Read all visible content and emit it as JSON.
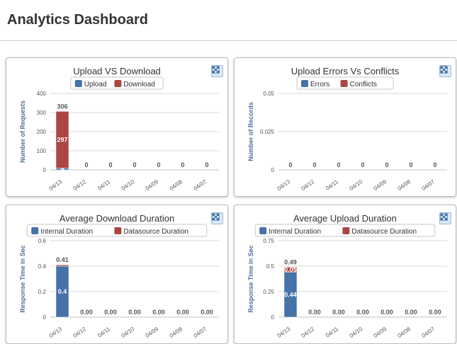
{
  "page": {
    "title": "Analytics Dashboard"
  },
  "chart_data": [
    {
      "type": "bar",
      "stacked": true,
      "title": "Upload VS Download",
      "ylabel": "Number of Requests",
      "xlabel": "",
      "ylim": [
        0,
        400
      ],
      "yticks": [
        "0",
        "100",
        "200",
        "300",
        "400"
      ],
      "categories": [
        "04/13",
        "04/12",
        "04/11",
        "04/10",
        "04/09",
        "04/08",
        "04/07"
      ],
      "series": [
        {
          "name": "Upload",
          "color": "#4572a7",
          "values": [
            9,
            0,
            0,
            0,
            0,
            0,
            0
          ],
          "labels": [
            "9",
            "",
            "",
            "",
            "",
            "",
            ""
          ]
        },
        {
          "name": "Download",
          "color": "#aa4643",
          "values": [
            297,
            0,
            0,
            0,
            0,
            0,
            0
          ],
          "labels": [
            "297",
            "",
            "",
            "",
            "",
            "",
            ""
          ]
        }
      ],
      "totals": [
        "306",
        "0",
        "0",
        "0",
        "0",
        "0",
        "0"
      ],
      "grid": true,
      "legend": "top-center"
    },
    {
      "type": "bar",
      "stacked": true,
      "title": "Upload Errors Vs Conflicts",
      "ylabel": "Number of Records",
      "xlabel": "",
      "ylim": [
        0,
        0.05
      ],
      "yticks": [
        "0",
        "0.025",
        "0.05"
      ],
      "categories": [
        "04/13",
        "04/12",
        "04/11",
        "04/10",
        "04/09",
        "04/08",
        "04/07"
      ],
      "series": [
        {
          "name": "Errors",
          "color": "#4572a7",
          "values": [
            0,
            0,
            0,
            0,
            0,
            0,
            0
          ],
          "labels": [
            "",
            "",
            "",
            "",
            "",
            "",
            ""
          ]
        },
        {
          "name": "Conflicts",
          "color": "#aa4643",
          "values": [
            0,
            0,
            0,
            0,
            0,
            0,
            0
          ],
          "labels": [
            "",
            "",
            "",
            "",
            "",
            "",
            ""
          ]
        }
      ],
      "totals": [
        "0",
        "0",
        "0",
        "0",
        "0",
        "0",
        "0"
      ],
      "grid": true,
      "legend": "top-center"
    },
    {
      "type": "bar",
      "stacked": true,
      "title": "Average Download Duration",
      "ylabel": "Response Time in Sec",
      "xlabel": "",
      "ylim": [
        0,
        0.6
      ],
      "yticks": [
        "0",
        "0.2",
        "0.4",
        "0.6"
      ],
      "categories": [
        "04/13",
        "04/12",
        "04/11",
        "04/10",
        "04/09",
        "04/08",
        "04/07"
      ],
      "series": [
        {
          "name": "Internal Duration",
          "color": "#4572a7",
          "values": [
            0.4,
            0,
            0,
            0,
            0,
            0,
            0
          ],
          "labels": [
            "0.4",
            "",
            "",
            "",
            "",
            "",
            ""
          ]
        },
        {
          "name": "Datasource Duration",
          "color": "#aa4643",
          "values": [
            0.01,
            0,
            0,
            0,
            0,
            0,
            0
          ],
          "labels": [
            "",
            "",
            "",
            "",
            "",
            "",
            ""
          ]
        }
      ],
      "totals": [
        "0.41",
        "0.00",
        "0.00",
        "0.00",
        "0.00",
        "0.00",
        "0.00"
      ],
      "grid": true,
      "legend": "top-center"
    },
    {
      "type": "bar",
      "stacked": true,
      "title": "Average Upload Duration",
      "ylabel": "Response Time in Sec",
      "xlabel": "",
      "ylim": [
        0,
        0.75
      ],
      "yticks": [
        "0",
        "0.25",
        "0.5",
        "0.75"
      ],
      "categories": [
        "04/13",
        "04/12",
        "04/11",
        "04/10",
        "04/09",
        "04/08",
        "04/07"
      ],
      "series": [
        {
          "name": "Internal Duration",
          "color": "#4572a7",
          "values": [
            0.44,
            0,
            0,
            0,
            0,
            0,
            0
          ],
          "labels": [
            "0.44",
            "",
            "",
            "",
            "",
            "",
            ""
          ]
        },
        {
          "name": "Datasource Duration",
          "color": "#aa4643",
          "values": [
            0.05,
            0,
            0,
            0,
            0,
            0,
            0
          ],
          "labels": [
            "0.05",
            "",
            "",
            "",
            "",
            "",
            ""
          ]
        }
      ],
      "totals": [
        "0.49",
        "0.00",
        "0.00",
        "0.00",
        "0.00",
        "0.00",
        "0.00"
      ],
      "grid": true,
      "legend": "top-center"
    }
  ]
}
